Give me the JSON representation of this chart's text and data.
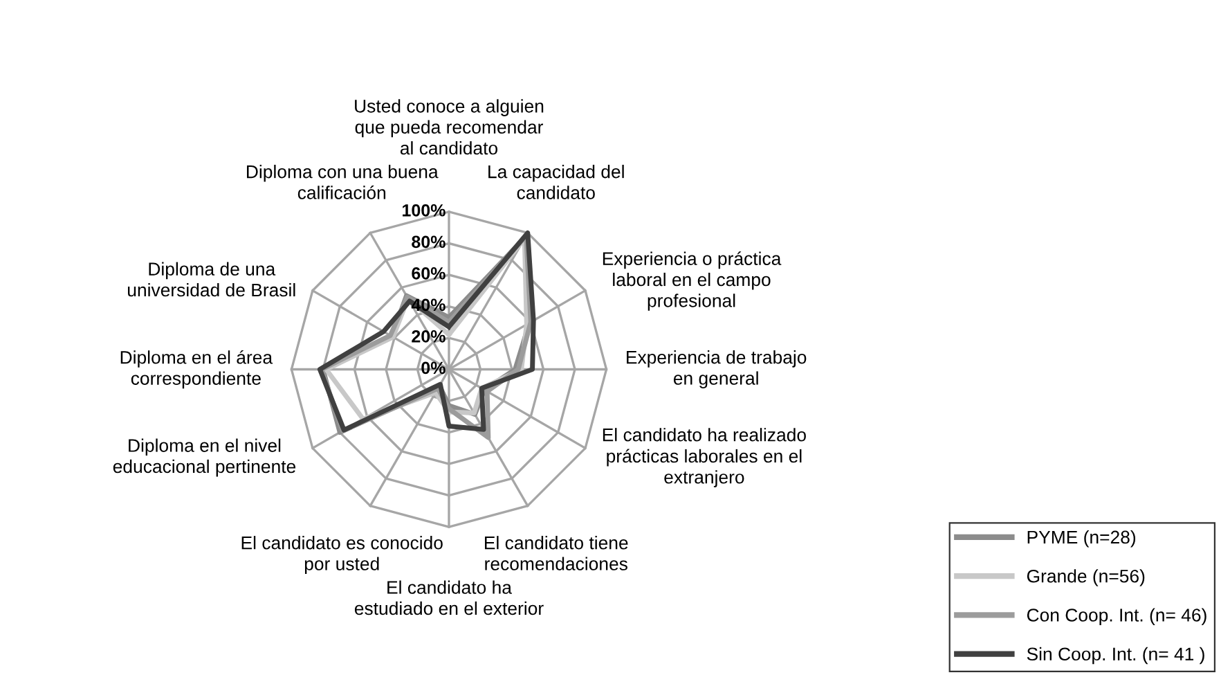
{
  "chart_data": {
    "type": "radar",
    "categories": [
      "Usted conoce a alguien\nque pueda recomendar\nal candidato",
      "La capacidad del\ncandidato",
      "Experiencia o práctica\nlaboral en el campo\nprofesional",
      "Experiencia de trabajo\nen general",
      "El candidato ha realizado\nprácticas laborales en el\nextranjero",
      "El candidato tiene\nrecomendaciones",
      "El candidato ha\nestudiado en el exterior",
      "El candidato es conocido\npor usted",
      "Diploma en el nivel\neducacional pertinente",
      "Diploma en el área\ncorrespondiente",
      "Diploma de una\nuniversidad de Brasil",
      "Diploma con una buena\ncalificación"
    ],
    "series": [
      {
        "name": "PYME (n=28)",
        "color": "#8c8c8c",
        "values": [
          33,
          97,
          59,
          42,
          26,
          33,
          23,
          12,
          80,
          80,
          42,
          54
        ]
      },
      {
        "name": "Grande (n=56)",
        "color": "#c8c8c8",
        "values": [
          22,
          96,
          57,
          46,
          24,
          32,
          27,
          17,
          63,
          78,
          41,
          52
        ]
      },
      {
        "name": "Con Coop. Int. (n= 46)",
        "color": "#9c9c9c",
        "values": [
          30,
          98,
          60,
          44,
          28,
          50,
          25,
          14,
          78,
          81,
          43,
          53
        ]
      },
      {
        "name": "Sin Coop. Int. (n= 41 )",
        "color": "#404040",
        "values": [
          27,
          100,
          62,
          53,
          24,
          44,
          36,
          11,
          77,
          82,
          48,
          50
        ]
      }
    ],
    "ylim": [
      0,
      100
    ],
    "yticks": [
      {
        "value": 0,
        "label": "0%"
      },
      {
        "value": 20,
        "label": "20%"
      },
      {
        "value": 40,
        "label": "40%"
      },
      {
        "value": 60,
        "label": "60%"
      },
      {
        "value": 80,
        "label": "80%"
      },
      {
        "value": 100,
        "label": "100%"
      }
    ],
    "grid": true,
    "legend": "bottom right",
    "line_style": "solid",
    "marker": "none"
  }
}
